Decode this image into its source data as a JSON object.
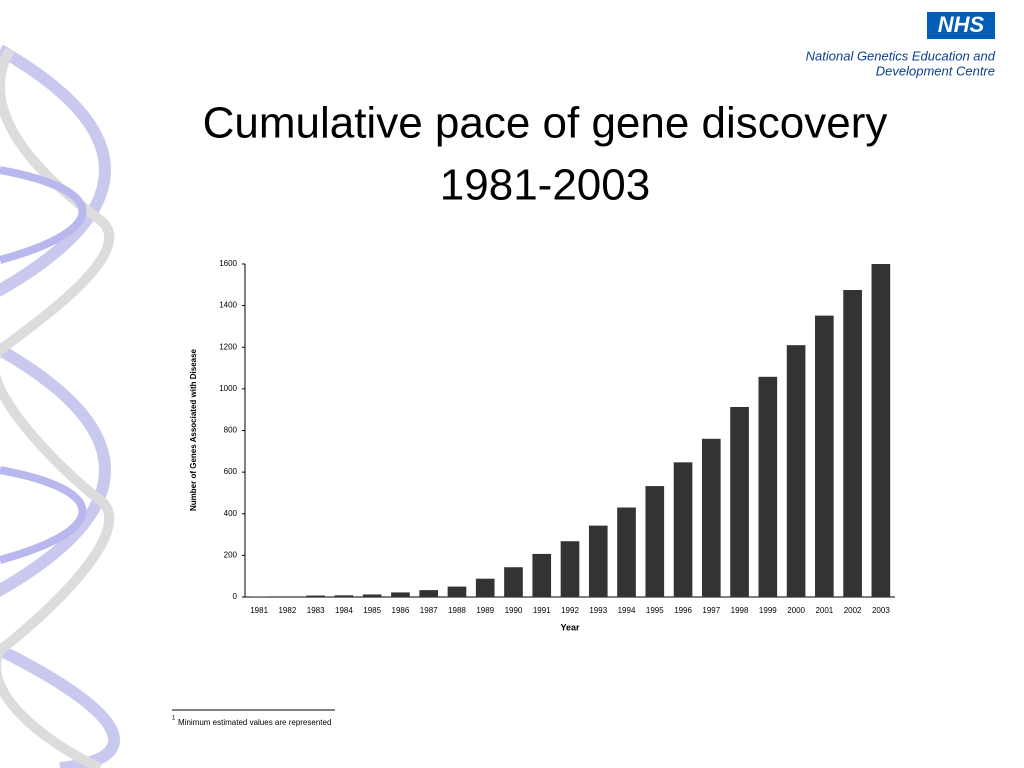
{
  "header": {
    "logo": "NHS",
    "org_lines": [
      "National Genetics Education and",
      "Development Centre"
    ]
  },
  "slide": {
    "title_lines": [
      "Cumulative pace of gene discovery",
      "1981-2003"
    ]
  },
  "chart_data": {
    "type": "bar",
    "x_label": "Year",
    "y_label": "Number of Genes Associated with Disease",
    "categories": [
      "1981",
      "1982",
      "1983",
      "1984",
      "1985",
      "1986",
      "1987",
      "1988",
      "1989",
      "1990",
      "1991",
      "1992",
      "1993",
      "1994",
      "1995",
      "1996",
      "1997",
      "1998",
      "1999",
      "2000",
      "2001",
      "2002",
      "2003"
    ],
    "values": [
      2,
      3,
      7,
      8,
      12,
      22,
      33,
      50,
      88,
      143,
      207,
      268,
      343,
      430,
      533,
      647,
      760,
      913,
      1058,
      1210,
      1352,
      1475,
      1600
    ],
    "color": "#333333",
    "ylim": [
      0,
      1600
    ],
    "yticks": [
      0,
      200,
      400,
      600,
      800,
      1000,
      1200,
      1400,
      1600
    ],
    "grid": false
  },
  "footnote": {
    "marker": "1",
    "text": "Minimum estimated values are represented"
  }
}
